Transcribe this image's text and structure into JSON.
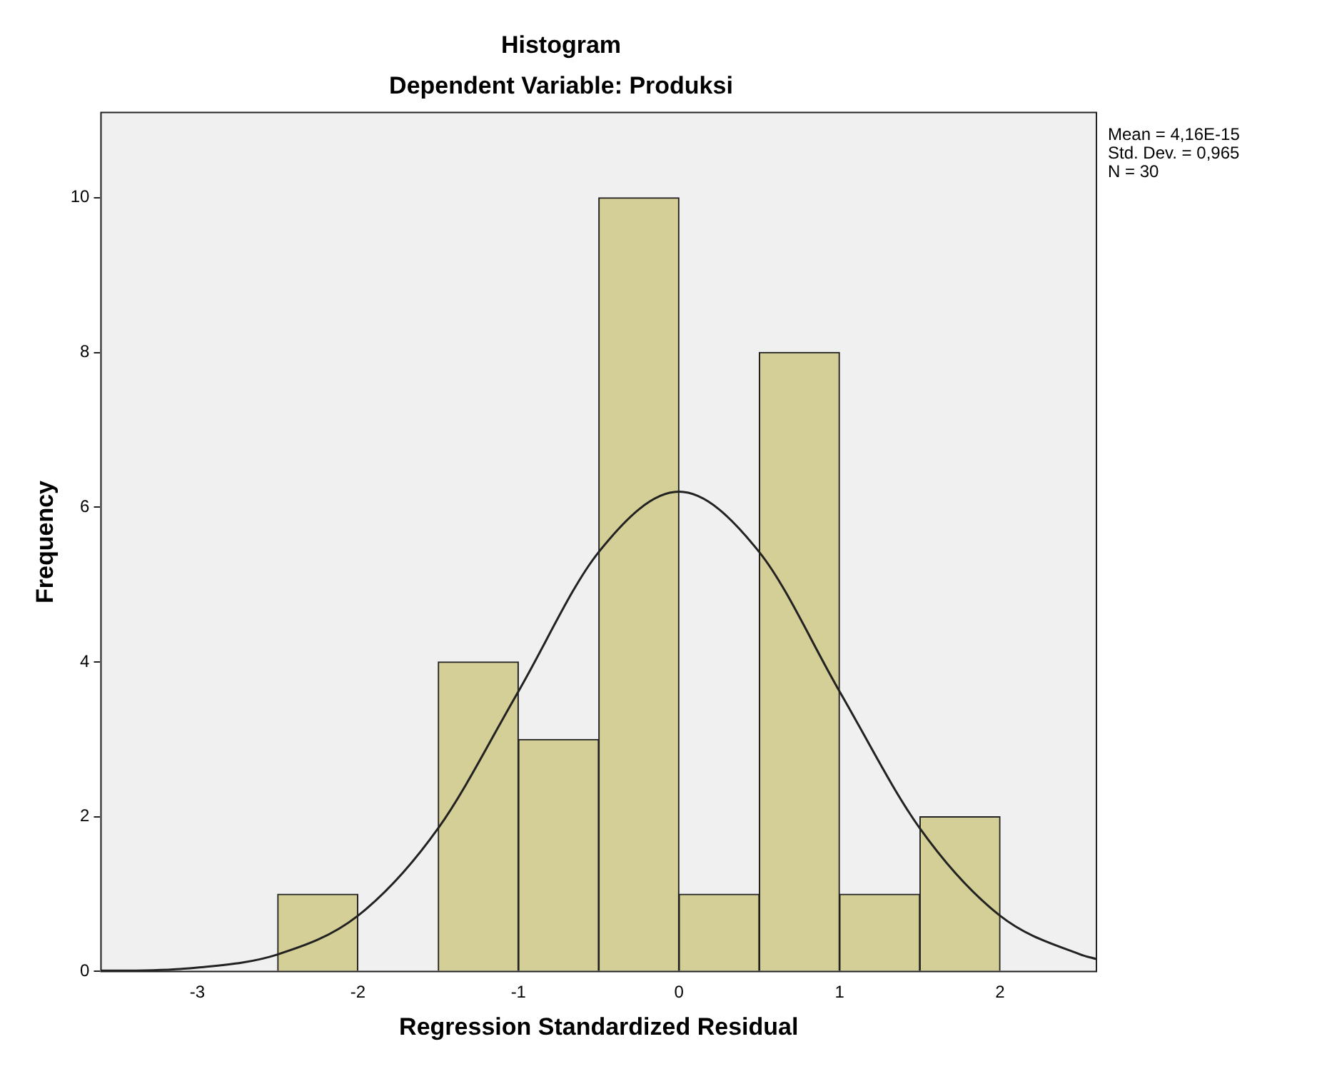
{
  "chart_data": {
    "type": "histogram",
    "title": "Histogram",
    "subtitle": "Dependent Variable: Produksi",
    "xlabel": "Regression Standardized Residual",
    "ylabel": "Frequency",
    "bins": [
      -2.5,
      -2,
      -1.5,
      -1,
      -0.5,
      0,
      0.5,
      1,
      1.5,
      2
    ],
    "values": [
      1,
      0,
      4,
      3,
      10,
      1,
      8,
      1,
      2
    ],
    "color": "#d4cf96",
    "series": [
      {
        "type": "line",
        "color": "#222222",
        "x": [
          -3.6,
          -3.5,
          -3,
          -2.5,
          -2,
          -1.5,
          -1,
          -0.5,
          0,
          0.5,
          1,
          1.5,
          2,
          2.5,
          2.6
        ],
        "values": [
          0.01,
          0.01,
          0.05,
          0.22,
          0.72,
          1.85,
          3.62,
          5.42,
          6.2,
          5.42,
          3.62,
          1.85,
          0.72,
          0.22,
          0.16
        ]
      }
    ],
    "xlim": [
      -3.6,
      2.6
    ],
    "xticks": [
      -3,
      -2,
      -1,
      0,
      1,
      2
    ],
    "ylim": [
      0,
      11.1
    ],
    "yticks": [
      0,
      2,
      4,
      6,
      8,
      10
    ],
    "annotations": [
      "Mean = 4,16E-15",
      "Std. Dev. = 0,965",
      "N = 30"
    ],
    "grid": false,
    "legend": false,
    "marker": "none"
  }
}
